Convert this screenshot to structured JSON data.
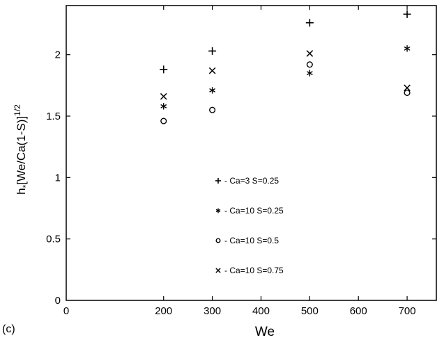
{
  "panel_label": "(c)",
  "chart_data": {
    "type": "scatter",
    "xlabel": "We",
    "ylabel_main": "h",
    "ylabel_sub": "*",
    "ylabel_rest": "[We/Ca(1-S)]",
    "ylabel_sup": "1/2",
    "xlim": [
      0,
      760
    ],
    "ylim": [
      0,
      2.4
    ],
    "x_ticks": [
      0,
      200,
      300,
      400,
      500,
      600,
      700
    ],
    "x_tick_labels": [
      "0",
      "200",
      "300",
      "400",
      "500",
      "600",
      "700"
    ],
    "y_ticks": [
      0,
      0.5,
      1,
      1.5,
      2
    ],
    "y_tick_labels": [
      "0",
      "0.5",
      "1",
      "1.5",
      "2"
    ],
    "grid": false,
    "legend_position": "center-bottom inside",
    "series": [
      {
        "name": "- Ca=3 S=0.25",
        "marker": "+",
        "x": [
          200,
          300,
          500,
          700
        ],
        "y": [
          1.88,
          2.03,
          2.26,
          2.33
        ]
      },
      {
        "name": "- Ca=10 S=0.25",
        "marker": "*",
        "x": [
          200,
          300,
          500,
          700
        ],
        "y": [
          1.58,
          1.71,
          1.85,
          2.05
        ]
      },
      {
        "name": "- Ca=10 S=0.5",
        "marker": "o",
        "x": [
          200,
          300,
          500,
          700
        ],
        "y": [
          1.46,
          1.55,
          1.92,
          1.69
        ]
      },
      {
        "name": "- Ca=10 S=0.75",
        "marker": "x",
        "x": [
          200,
          300,
          500,
          700
        ],
        "y": [
          1.66,
          1.87,
          2.01,
          1.73
        ]
      }
    ]
  }
}
